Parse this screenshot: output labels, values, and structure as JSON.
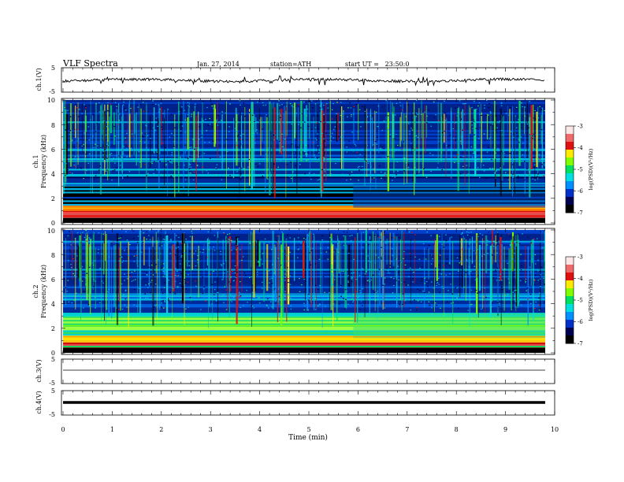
{
  "header": {
    "title": "VLF Spectra",
    "date": "Jan. 27, 2014",
    "station": "station=ATH",
    "start_ut": "start UT =   23:50:0"
  },
  "colorbar": {
    "label": "log(PSD)(V²/Hz)",
    "ticks": [
      "-3",
      "-4",
      "-5",
      "-6",
      "-7"
    ],
    "colors": [
      "#fbe6e6",
      "#f06a6a",
      "#e01010",
      "#ffea00",
      "#80ff00",
      "#00e060",
      "#00e0e0",
      "#0090ff",
      "#0030c8",
      "#000050",
      "#000000"
    ]
  },
  "chart_data": [
    {
      "type": "line",
      "panel": "ch1-waveform",
      "ylabel": "ch.1(V)",
      "yticks": [
        "5",
        "-5"
      ],
      "ylim": [
        -5,
        5
      ],
      "xlim": [
        0,
        10
      ],
      "description_values": {
        "baseline_v": 0.3,
        "noise_amplitude_v": 0.5
      }
    },
    {
      "type": "heatmap",
      "panel": "ch1-spectrogram",
      "ylabel_channel": "ch.1",
      "ylabel": "Frequency (kHz)",
      "yticks": [
        "0",
        "2",
        "4",
        "6",
        "8",
        "10"
      ],
      "ylim": [
        0,
        10
      ],
      "xlim": [
        0,
        9.8
      ],
      "zlim": [
        -7,
        -3
      ],
      "regime_change_min": 5.9
    },
    {
      "type": "heatmap",
      "panel": "ch2-spectrogram",
      "ylabel_channel": "ch.2",
      "ylabel": "Frequency (kHz)",
      "yticks": [
        "0",
        "2",
        "4",
        "6",
        "8",
        "10"
      ],
      "ylim": [
        0,
        10
      ],
      "xlim": [
        0,
        9.8
      ],
      "zlim": [
        -7,
        -3
      ],
      "regime_change_min": 5.9
    },
    {
      "type": "line",
      "panel": "ch3-waveform",
      "ylabel": "ch.3(V)",
      "yticks": [
        "5",
        "-5"
      ],
      "ylim": [
        -5,
        5
      ],
      "xlim": [
        0,
        10
      ],
      "description_values": {
        "baseline_v": -1.5
      }
    },
    {
      "type": "line",
      "panel": "ch4-waveform",
      "ylabel": "ch.4(V)",
      "yticks": [
        "5",
        "-5"
      ],
      "ylim": [
        -5,
        5
      ],
      "xlim": [
        0,
        10
      ],
      "description_values": {
        "baseline_v": 0
      }
    }
  ],
  "xaxis": {
    "label": "Time (min)",
    "ticks": [
      "0",
      "1",
      "2",
      "3",
      "4",
      "5",
      "6",
      "7",
      "8",
      "9",
      "10"
    ],
    "xlim": [
      0,
      10
    ]
  }
}
